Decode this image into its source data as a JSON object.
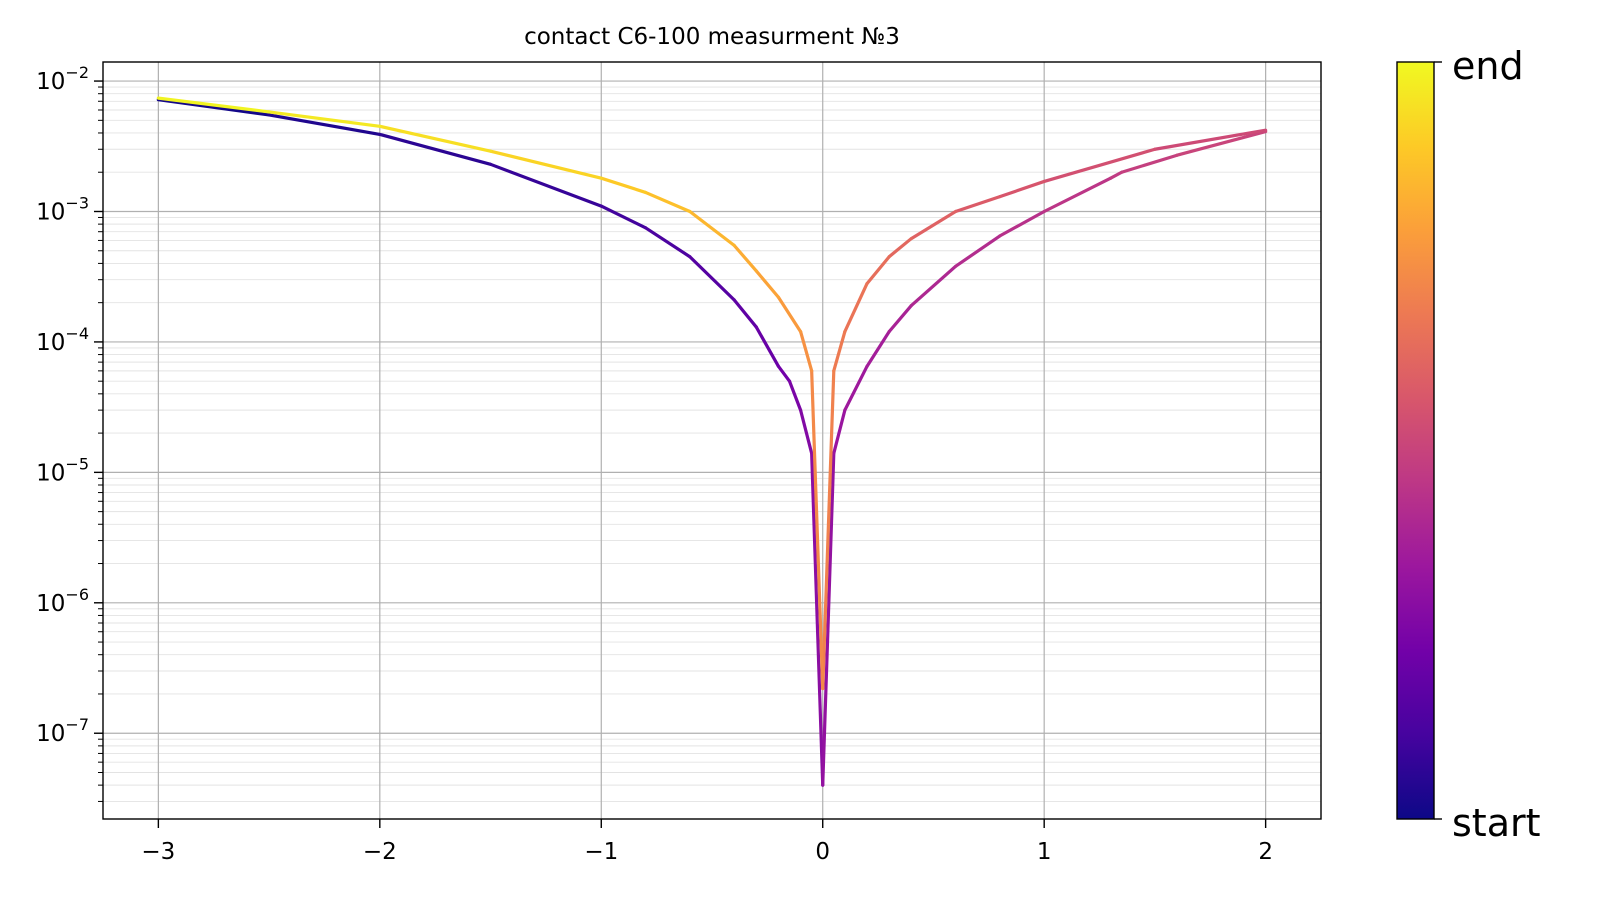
{
  "chart_data": {
    "type": "line",
    "title": "contact C6-100 measurment №3",
    "xlabel": "",
    "ylabel": "",
    "xlim": [
      -3.25,
      2.25
    ],
    "ylim": [
      2.2e-08,
      0.014
    ],
    "yscale": "log",
    "grid": "on (major and minor)",
    "x_ticks": [
      -3,
      -2,
      -1,
      0,
      1,
      2
    ],
    "x_tick_labels": [
      "−3",
      "−2",
      "−1",
      "0",
      "1",
      "2"
    ],
    "y_ticks": [
      1e-07,
      1e-06,
      1e-05,
      0.0001,
      0.001,
      0.01
    ],
    "y_tick_labels": [
      {
        "base": "10",
        "exp": "−7"
      },
      {
        "base": "10",
        "exp": "−6"
      },
      {
        "base": "10",
        "exp": "−5"
      },
      {
        "base": "10",
        "exp": "−4"
      },
      {
        "base": "10",
        "exp": "−3"
      },
      {
        "base": "10",
        "exp": "−2"
      }
    ],
    "colormap": "plasma",
    "colorbar": {
      "top_label": "end",
      "bottom_label": "start",
      "stops": [
        "#0d0887",
        "#46039f",
        "#7201a8",
        "#9c179e",
        "#bd3786",
        "#d8576b",
        "#ed7953",
        "#fb9f3a",
        "#fdca26",
        "#f0f921"
      ]
    },
    "path_description": "single sweep colored by progress: -3 → 0 → 2 (lower branch), then 2 → 0 → -3 (upper branch)",
    "sweep": [
      {
        "segment": "forward_negative",
        "progress": [
          0.0,
          0.3
        ],
        "x": [
          -3,
          -2.5,
          -2,
          -1.5,
          -1,
          -0.8,
          -0.6,
          -0.4,
          -0.3,
          -0.2,
          -0.15,
          -0.1,
          -0.05,
          0
        ],
        "y": [
          0.0072,
          0.0055,
          0.0039,
          0.0023,
          0.0011,
          0.00075,
          0.00045,
          0.00021,
          0.00013,
          6.5e-05,
          5e-05,
          3e-05,
          1.4e-05,
          4e-08
        ]
      },
      {
        "segment": "forward_positive",
        "progress": [
          0.3,
          0.5
        ],
        "x": [
          0,
          0.05,
          0.1,
          0.2,
          0.3,
          0.4,
          0.6,
          0.8,
          1.0,
          1.3,
          1.35,
          1.6,
          2.0
        ],
        "y": [
          4e-08,
          1.4e-05,
          3e-05,
          6.5e-05,
          0.00012,
          0.00019,
          0.00038,
          0.00065,
          0.001,
          0.0018,
          0.002,
          0.0027,
          0.0041
        ]
      },
      {
        "segment": "backward_positive",
        "progress": [
          0.5,
          0.7
        ],
        "x": [
          2.0,
          1.5,
          1.0,
          0.8,
          0.6,
          0.4,
          0.3,
          0.2,
          0.1,
          0.05,
          0
        ],
        "y": [
          0.0042,
          0.003,
          0.0017,
          0.0013,
          0.001,
          0.00062,
          0.00045,
          0.00028,
          0.00012,
          6e-05,
          2.2e-07
        ]
      },
      {
        "segment": "backward_negative",
        "progress": [
          0.7,
          1.0
        ],
        "x": [
          0,
          -0.05,
          -0.1,
          -0.2,
          -0.3,
          -0.4,
          -0.6,
          -0.8,
          -1,
          -1.5,
          -2,
          -2.5,
          -3
        ],
        "y": [
          2.2e-07,
          6e-05,
          0.00012,
          0.00022,
          0.00035,
          0.00055,
          0.001,
          0.0014,
          0.0018,
          0.0029,
          0.0045,
          0.0058,
          0.0074
        ]
      }
    ]
  }
}
